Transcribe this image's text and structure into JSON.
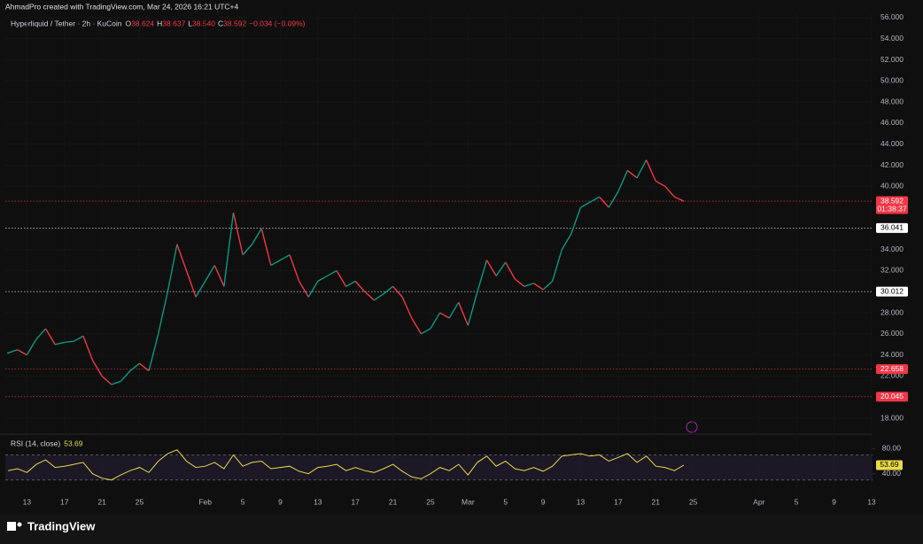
{
  "header": "AhmadPro created with TradingView.com, Mar 24, 2026 16:21 UTC+4",
  "footer": "TradingView",
  "chart_data": {
    "type": "line",
    "title": "Hyperliquid / Tether · 2h · KuCoin",
    "ohlc_legend": [
      {
        "key": "O",
        "value": "38.624"
      },
      {
        "key": "H",
        "value": "38.637"
      },
      {
        "key": "L",
        "value": "38.540"
      },
      {
        "key": "C",
        "value": "38.592"
      }
    ],
    "change": "−0.034 (−0.09%)",
    "xlim": [
      10.7,
      103.1
    ],
    "xticks": [
      {
        "value": 13,
        "label": "13"
      },
      {
        "value": 17,
        "label": "17"
      },
      {
        "value": 21,
        "label": "21"
      },
      {
        "value": 25,
        "label": "25"
      },
      {
        "value": 32,
        "label": "Feb"
      },
      {
        "value": 36,
        "label": "5"
      },
      {
        "value": 40,
        "label": "9"
      },
      {
        "value": 44,
        "label": "13"
      },
      {
        "value": 48,
        "label": "17"
      },
      {
        "value": 52,
        "label": "21"
      },
      {
        "value": 56,
        "label": "25"
      },
      {
        "value": 60,
        "label": "Mar"
      },
      {
        "value": 64,
        "label": "5"
      },
      {
        "value": 68,
        "label": "9"
      },
      {
        "value": 72,
        "label": "13"
      },
      {
        "value": 76,
        "label": "17"
      },
      {
        "value": 80,
        "label": "21"
      },
      {
        "value": 84,
        "label": "25"
      },
      {
        "value": 91,
        "label": "Apr"
      },
      {
        "value": 95,
        "label": "5"
      },
      {
        "value": 99,
        "label": "9"
      },
      {
        "value": 103,
        "label": "13"
      }
    ],
    "ylim": [
      17.5,
      56.5
    ],
    "yticks": [
      {
        "value": 18,
        "label": "18.000"
      },
      {
        "value": 22,
        "label": "22.000"
      },
      {
        "value": 24,
        "label": "24.000"
      },
      {
        "value": 26,
        "label": "26.000"
      },
      {
        "value": 28,
        "label": "28.000"
      },
      {
        "value": 32,
        "label": "32.000"
      },
      {
        "value": 34,
        "label": "34.000"
      },
      {
        "value": 40,
        "label": "40.000"
      },
      {
        "value": 42,
        "label": "42.000"
      },
      {
        "value": 44,
        "label": "44.000"
      },
      {
        "value": 46,
        "label": "46.000"
      },
      {
        "value": 48,
        "label": "48.000"
      },
      {
        "value": 50,
        "label": "50.000"
      },
      {
        "value": 52,
        "label": "52.000"
      },
      {
        "value": 54,
        "label": "54.000"
      },
      {
        "value": 56,
        "label": "56.000"
      }
    ],
    "up_color": "#089981",
    "down_color": "#f23645",
    "x": [
      11,
      12,
      13,
      14,
      15,
      16,
      17,
      18,
      19,
      20,
      21,
      22,
      23,
      24,
      25,
      26,
      27,
      28,
      29,
      30,
      31,
      32,
      33,
      34,
      35,
      36,
      37,
      38,
      39,
      40,
      41,
      42,
      43,
      44,
      45,
      46,
      47,
      48,
      49,
      50,
      51,
      52,
      53,
      54,
      55,
      56,
      57,
      58,
      59,
      60,
      61,
      62,
      63,
      64,
      65,
      66,
      67,
      68,
      69,
      70,
      71,
      72,
      73,
      74,
      75,
      76,
      77,
      78,
      79,
      80,
      81,
      82,
      83
    ],
    "values": [
      24.2,
      24.5,
      24.0,
      25.5,
      26.5,
      25.0,
      25.2,
      25.3,
      25.8,
      23.5,
      22.0,
      21.2,
      21.5,
      22.5,
      23.2,
      22.5,
      26.0,
      30.0,
      34.5,
      32.0,
      29.5,
      31.0,
      32.5,
      30.5,
      37.5,
      33.5,
      34.5,
      36.0,
      32.5,
      33.0,
      33.5,
      31.0,
      29.5,
      31.0,
      31.5,
      32.0,
      30.5,
      31.0,
      30.0,
      29.2,
      29.8,
      30.5,
      29.5,
      27.5,
      26.0,
      26.5,
      28.0,
      27.5,
      29.0,
      26.8,
      30.0,
      33.0,
      31.5,
      32.8,
      31.2,
      30.5,
      30.8,
      30.2,
      31.0,
      34.0,
      35.5,
      38.0,
      38.5,
      39.0,
      38.0,
      39.5,
      41.5,
      40.8,
      42.5,
      40.5,
      40.0,
      39.0,
      38.592
    ],
    "price_lines": [
      {
        "value": 38.592,
        "label": "38.592",
        "countdown": "01:38:37",
        "color": "#f23645"
      },
      {
        "value": 36.041,
        "label": "36.041",
        "color": "#ffffff"
      },
      {
        "value": 30.012,
        "label": "30.012",
        "color": "#ffffff"
      },
      {
        "value": 22.658,
        "label": "22.658",
        "color": "#f23645"
      },
      {
        "value": 20.045,
        "label": "20.045",
        "color": "#f23645"
      }
    ],
    "rsi": {
      "name": "RSI (14, close)",
      "color": "#e8d94a",
      "ylim": [
        10,
        103
      ],
      "yticks": [
        {
          "value": 80,
          "label": "80.00"
        },
        {
          "value": 40,
          "label": "40.00"
        }
      ],
      "band": [
        30,
        70
      ],
      "values": [
        45,
        48,
        42,
        55,
        62,
        50,
        52,
        55,
        58,
        40,
        33,
        30,
        38,
        45,
        50,
        42,
        60,
        72,
        78,
        60,
        50,
        52,
        58,
        48,
        70,
        52,
        58,
        60,
        48,
        50,
        52,
        44,
        40,
        50,
        52,
        55,
        45,
        50,
        45,
        42,
        48,
        55,
        44,
        35,
        32,
        40,
        50,
        45,
        55,
        38,
        58,
        68,
        52,
        60,
        48,
        45,
        50,
        44,
        52,
        68,
        70,
        72,
        68,
        70,
        60,
        66,
        72,
        58,
        68,
        52,
        50,
        45,
        53.69
      ],
      "value_label": "53.69"
    }
  }
}
